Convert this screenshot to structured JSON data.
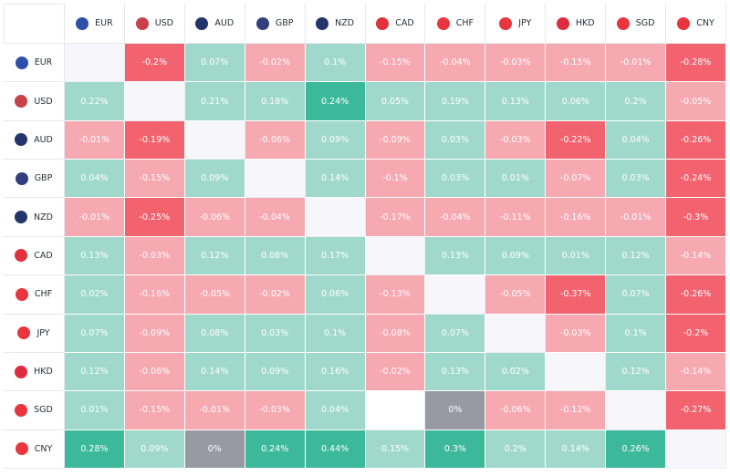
{
  "colors": {
    "strong_pos": "#3cb89a",
    "pos": "#a0d9cc",
    "neg": "#f7a9b1",
    "strong_neg": "#f2636f",
    "zero": "#979aa3",
    "diag": "#f7f7fb",
    "empty": "#ffffff"
  },
  "currencies": [
    {
      "code": "EUR",
      "flag": "eu-flag-icon",
      "flag_color": "#2e4fa8"
    },
    {
      "code": "USD",
      "flag": "us-flag-icon",
      "flag_color": "#c8414b"
    },
    {
      "code": "AUD",
      "flag": "au-flag-icon",
      "flag_color": "#24356b"
    },
    {
      "code": "GBP",
      "flag": "gb-flag-icon",
      "flag_color": "#33407f"
    },
    {
      "code": "NZD",
      "flag": "nz-flag-icon",
      "flag_color": "#24356b"
    },
    {
      "code": "CAD",
      "flag": "ca-flag-icon",
      "flag_color": "#e0313d"
    },
    {
      "code": "CHF",
      "flag": "ch-flag-icon",
      "flag_color": "#e8353e"
    },
    {
      "code": "JPY",
      "flag": "jp-flag-icon",
      "flag_color": "#e8353e"
    },
    {
      "code": "HKD",
      "flag": "hk-flag-icon",
      "flag_color": "#dd2c3f"
    },
    {
      "code": "SGD",
      "flag": "sg-flag-icon",
      "flag_color": "#e8353e"
    },
    {
      "code": "CNY",
      "flag": "cn-flag-icon",
      "flag_color": "#e8353e"
    }
  ],
  "chart_data": {
    "type": "heatmap",
    "title": "",
    "rows": [
      "EUR",
      "USD",
      "AUD",
      "GBP",
      "NZD",
      "CAD",
      "CHF",
      "JPY",
      "HKD",
      "SGD",
      "CNY"
    ],
    "columns": [
      "EUR",
      "USD",
      "AUD",
      "GBP",
      "NZD",
      "CAD",
      "CHF",
      "JPY",
      "HKD",
      "SGD",
      "CNY"
    ],
    "labels": [
      [
        null,
        "-0.2%",
        "0.07%",
        "-0.02%",
        "0.1%",
        "-0.15%",
        "-0.04%",
        "-0.03%",
        "-0.15%",
        "-0.01%",
        "-0.28%"
      ],
      [
        "0.22%",
        null,
        "0.21%",
        "0.18%",
        "0.24%",
        "0.05%",
        "0.19%",
        "0.13%",
        "0.06%",
        "0.2%",
        "-0.05%"
      ],
      [
        "-0.01%",
        "-0.19%",
        null,
        "-0.06%",
        "0.09%",
        "-0.09%",
        "0.03%",
        "-0.03%",
        "-0.22%",
        "0.04%",
        "-0.26%"
      ],
      [
        "0.04%",
        "-0.15%",
        "0.09%",
        null,
        "0.14%",
        "-0.1%",
        "0.03%",
        "0.01%",
        "-0.07%",
        "0.03%",
        "-0.24%"
      ],
      [
        "-0.01%",
        "-0.25%",
        "-0.06%",
        "-0.04%",
        null,
        "-0.17%",
        "-0.04%",
        "-0.11%",
        "-0.16%",
        "-0.01%",
        "-0.3%"
      ],
      [
        "0.13%",
        "-0.03%",
        "0.12%",
        "0.08%",
        "0.17%",
        null,
        "0.13%",
        "0.09%",
        "0.01%",
        "0.12%",
        "-0.14%"
      ],
      [
        "0.02%",
        "-0.16%",
        "-0.05%",
        "-0.02%",
        "0.06%",
        "-0.13%",
        null,
        "-0.05%",
        "-0.37%",
        "0.07%",
        "-0.26%"
      ],
      [
        "0.07%",
        "-0.09%",
        "0.08%",
        "0.03%",
        "0.1%",
        "-0.08%",
        "0.07%",
        null,
        "-0.03%",
        "0.1%",
        "-0.2%"
      ],
      [
        "0.12%",
        "-0.06%",
        "0.14%",
        "0.09%",
        "0.16%",
        "-0.02%",
        "0.13%",
        "0.02%",
        null,
        "0.12%",
        "-0.14%"
      ],
      [
        "0.01%",
        "-0.15%",
        "-0.01%",
        "-0.03%",
        "0.04%",
        "",
        "0%",
        "-0.06%",
        "-0.12%",
        null,
        "-0.27%"
      ],
      [
        "0.28%",
        "0.09%",
        "0%",
        "0.24%",
        "0.44%",
        "0.15%",
        "0.3%",
        "0.2%",
        "0.14%",
        "0.26%",
        null
      ]
    ],
    "categories": [
      [
        "diag",
        "strong_neg",
        "pos",
        "neg",
        "pos",
        "neg",
        "neg",
        "neg",
        "neg",
        "neg",
        "strong_neg"
      ],
      [
        "pos",
        "diag",
        "pos",
        "pos",
        "strong_pos",
        "pos",
        "pos",
        "pos",
        "pos",
        "pos",
        "neg"
      ],
      [
        "neg",
        "strong_neg",
        "diag",
        "neg",
        "pos",
        "neg",
        "pos",
        "neg",
        "strong_neg",
        "pos",
        "strong_neg"
      ],
      [
        "pos",
        "neg",
        "pos",
        "diag",
        "pos",
        "neg",
        "pos",
        "pos",
        "neg",
        "pos",
        "strong_neg"
      ],
      [
        "neg",
        "strong_neg",
        "neg",
        "neg",
        "diag",
        "neg",
        "neg",
        "neg",
        "neg",
        "neg",
        "strong_neg"
      ],
      [
        "pos",
        "neg",
        "pos",
        "pos",
        "pos",
        "diag",
        "pos",
        "pos",
        "pos",
        "pos",
        "neg"
      ],
      [
        "pos",
        "neg",
        "neg",
        "neg",
        "pos",
        "neg",
        "diag",
        "neg",
        "strong_neg",
        "pos",
        "strong_neg"
      ],
      [
        "pos",
        "neg",
        "pos",
        "pos",
        "pos",
        "neg",
        "pos",
        "diag",
        "neg",
        "pos",
        "strong_neg"
      ],
      [
        "pos",
        "neg",
        "pos",
        "pos",
        "pos",
        "neg",
        "pos",
        "pos",
        "diag",
        "pos",
        "neg"
      ],
      [
        "pos",
        "neg",
        "neg",
        "neg",
        "pos",
        "empty",
        "zero",
        "neg",
        "neg",
        "diag",
        "strong_neg"
      ],
      [
        "strong_pos",
        "pos",
        "zero",
        "strong_pos",
        "strong_pos",
        "pos",
        "strong_pos",
        "pos",
        "pos",
        "strong_pos",
        "diag"
      ]
    ]
  }
}
